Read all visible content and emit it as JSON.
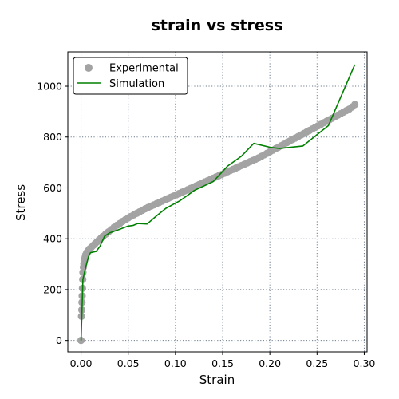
{
  "chart_data": {
    "type": "line",
    "title": "strain vs stress",
    "xlabel": "Strain",
    "ylabel": "Stress",
    "xlim": [
      -0.014,
      0.303
    ],
    "ylim": [
      -45,
      1135
    ],
    "xticks": [
      0.0,
      0.05,
      0.1,
      0.15,
      0.2,
      0.25,
      0.3
    ],
    "xtick_labels": [
      "0.00",
      "0.05",
      "0.10",
      "0.15",
      "0.20",
      "0.25",
      "0.30"
    ],
    "yticks": [
      0,
      200,
      400,
      600,
      800,
      1000
    ],
    "ytick_labels": [
      "0",
      "200",
      "400",
      "600",
      "800",
      "1000"
    ],
    "grid": true,
    "legend_position": "top-left",
    "series": [
      {
        "name": "Experimental",
        "kind": "scatter",
        "color": "#a3a3a3",
        "x": [
          0.0,
          0.0005,
          0.0008,
          0.001,
          0.0012,
          0.0015,
          0.0018,
          0.002,
          0.0025,
          0.003,
          0.0035,
          0.004,
          0.0045,
          0.005,
          0.006,
          0.007,
          0.008,
          0.009,
          0.011,
          0.013,
          0.015,
          0.017,
          0.019,
          0.021,
          0.023,
          0.026,
          0.029,
          0.032,
          0.035,
          0.038,
          0.041,
          0.044,
          0.047,
          0.05,
          0.053,
          0.056,
          0.059,
          0.062,
          0.065,
          0.068,
          0.071,
          0.074,
          0.077,
          0.08,
          0.083,
          0.086,
          0.089,
          0.092,
          0.095,
          0.098,
          0.101,
          0.104,
          0.107,
          0.11,
          0.113,
          0.116,
          0.119,
          0.122,
          0.125,
          0.128,
          0.131,
          0.134,
          0.137,
          0.14,
          0.143,
          0.146,
          0.149,
          0.152,
          0.155,
          0.158,
          0.161,
          0.164,
          0.167,
          0.17,
          0.173,
          0.176,
          0.179,
          0.182,
          0.185,
          0.188,
          0.191,
          0.194,
          0.197,
          0.2,
          0.203,
          0.206,
          0.209,
          0.212,
          0.215,
          0.218,
          0.221,
          0.224,
          0.227,
          0.23,
          0.233,
          0.236,
          0.239,
          0.242,
          0.245,
          0.248,
          0.251,
          0.254,
          0.257,
          0.26,
          0.263,
          0.266,
          0.269,
          0.272,
          0.275,
          0.278,
          0.281,
          0.284,
          0.287,
          0.29
        ],
        "y": [
          0,
          95,
          120,
          150,
          175,
          205,
          240,
          268,
          288,
          302,
          312,
          322,
          330,
          337,
          345,
          350,
          355,
          360,
          367,
          374,
          381,
          388,
          395,
          402,
          409,
          418,
          427,
          436,
          445,
          453,
          460,
          468,
          475,
          482,
          488,
          494,
          500,
          506,
          512,
          518,
          523,
          528,
          533,
          538,
          543,
          548,
          553,
          558,
          563,
          568,
          573,
          578,
          583,
          588,
          593,
          598,
          603,
          608,
          613,
          618,
          623,
          628,
          633,
          638,
          643,
          648,
          653,
          658,
          663,
          668,
          673,
          678,
          683,
          688,
          693,
          698,
          703,
          708,
          713,
          718,
          724,
          730,
          736,
          742,
          748,
          754,
          760,
          766,
          772,
          778,
          784,
          790,
          796,
          802,
          808,
          814,
          820,
          826,
          832,
          838,
          844,
          850,
          856,
          862,
          868,
          874,
          880,
          886,
          892,
          898,
          904,
          910,
          918,
          928
        ]
      },
      {
        "name": "Simulation",
        "kind": "line",
        "color": "#008000",
        "x": [
          0.0,
          0.002,
          0.005,
          0.008,
          0.01,
          0.013,
          0.016,
          0.02,
          0.025,
          0.03,
          0.04,
          0.05,
          0.055,
          0.06,
          0.07,
          0.08,
          0.09,
          0.1,
          0.105,
          0.12,
          0.14,
          0.155,
          0.17,
          0.183,
          0.2,
          0.21,
          0.235,
          0.262,
          0.29
        ],
        "y": [
          0,
          240,
          290,
          330,
          345,
          348,
          350,
          370,
          410,
          423,
          436,
          450,
          452,
          460,
          458,
          490,
          520,
          540,
          550,
          590,
          625,
          685,
          725,
          775,
          760,
          755,
          765,
          845,
          1085
        ]
      }
    ]
  }
}
